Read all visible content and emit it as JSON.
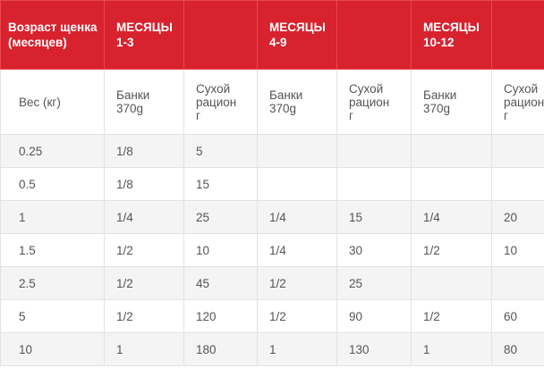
{
  "table": {
    "header": {
      "age_label": "Возраст щенка (месяцев)",
      "groups": [
        {
          "label_line1": "МЕСЯЦЫ",
          "label_line2": "1-3"
        },
        {
          "label_line1": "МЕСЯЦЫ",
          "label_line2": "4-9"
        },
        {
          "label_line1": "МЕСЯЦЫ",
          "label_line2": "10-12"
        }
      ]
    },
    "subheader": {
      "weight_label": "Вес (кг)",
      "cans_line1": "Банки",
      "cans_line2": "370g",
      "dry_line1": "Сухой",
      "dry_line2": "рацион",
      "dry_line3": "г"
    },
    "rows": [
      {
        "weight": "0.25",
        "c1": "1/8",
        "d1": "5",
        "c2": "",
        "d2": "",
        "c3": "",
        "d3": ""
      },
      {
        "weight": "0.5",
        "c1": "1/8",
        "d1": "15",
        "c2": "",
        "d2": "",
        "c3": "",
        "d3": ""
      },
      {
        "weight": "1",
        "c1": "1/4",
        "d1": "25",
        "c2": "1/4",
        "d2": "15",
        "c3": "1/4",
        "d3": "20"
      },
      {
        "weight": "1.5",
        "c1": "1/2",
        "d1": "10",
        "c2": "1/4",
        "d2": "30",
        "c3": "1/2",
        "d3": "10"
      },
      {
        "weight": "2.5",
        "c1": "1/2",
        "d1": "45",
        "c2": "1/2",
        "d2": "25",
        "c3": "",
        "d3": ""
      },
      {
        "weight": "5",
        "c1": "1/2",
        "d1": "120",
        "c2": "1/2",
        "d2": "90",
        "c3": "1/2",
        "d3": "60"
      },
      {
        "weight": "10",
        "c1": "1",
        "d1": "180",
        "c2": "1",
        "d2": "130",
        "c3": "1",
        "d3": "80"
      }
    ],
    "colors": {
      "header_bg": "#d8222e",
      "header_text": "#ffffff",
      "body_text": "#555555",
      "stripe_bg": "#f4f4f4",
      "border": "#e2e2e2"
    }
  }
}
